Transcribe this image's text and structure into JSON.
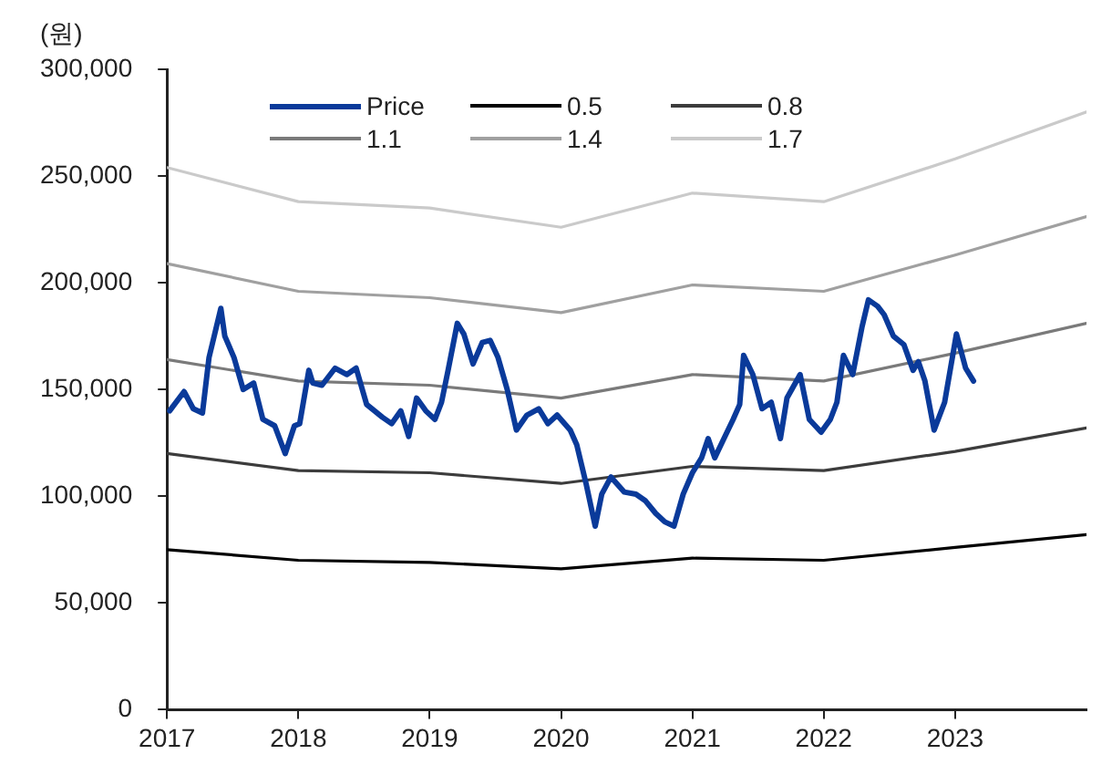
{
  "chart_data": {
    "type": "line",
    "ylabel": "(원)",
    "xlim": [
      2017,
      2024
    ],
    "xticks": [
      2017,
      2018,
      2019,
      2020,
      2021,
      2022,
      2023
    ],
    "ylim": [
      0,
      300000
    ],
    "yticks": [
      0,
      {
        "value": 50000,
        "label": "50,000"
      },
      {
        "value": 100000,
        "label": "100,000"
      },
      {
        "value": 150000,
        "label": "150,000"
      },
      {
        "value": 200000,
        "label": "200,000"
      },
      {
        "value": 250000,
        "label": "250,000"
      },
      {
        "value": 300000,
        "label": "300,000"
      }
    ],
    "grid": false,
    "legend": "top left",
    "marker": "none",
    "line_style": "solid",
    "series": [
      {
        "name": "Price",
        "color": "#0a3a9a",
        "x": [
          2017.02,
          2017.13,
          2017.2,
          2017.27,
          2017.32,
          2017.41,
          2017.44,
          2017.51,
          2017.58,
          2017.66,
          2017.73,
          2017.82,
          2017.9,
          2017.97,
          2018.01,
          2018.08,
          2018.11,
          2018.18,
          2018.28,
          2018.37,
          2018.44,
          2018.52,
          2018.64,
          2018.71,
          2018.78,
          2018.84,
          2018.9,
          2018.97,
          2019.04,
          2019.09,
          2019.14,
          2019.21,
          2019.26,
          2019.33,
          2019.4,
          2019.46,
          2019.52,
          2019.59,
          2019.66,
          2019.74,
          2019.83,
          2019.9,
          2019.97,
          2020.07,
          2020.12,
          2020.19,
          2020.26,
          2020.31,
          2020.38,
          2020.48,
          2020.57,
          2020.64,
          2020.72,
          2020.79,
          2020.86,
          2020.93,
          2021,
          2021.07,
          2021.12,
          2021.17,
          2021.24,
          2021.31,
          2021.36,
          2021.39,
          2021.46,
          2021.53,
          2021.6,
          2021.67,
          2021.72,
          2021.82,
          2021.89,
          2021.98,
          2022.05,
          2022.1,
          2022.15,
          2022.22,
          2022.29,
          2022.34,
          2022.41,
          2022.46,
          2022.53,
          2022.61,
          2022.68,
          2022.72,
          2022.77,
          2022.84,
          2022.92,
          2023.01,
          2023.08,
          2023.14
        ],
        "values": [
          140000,
          149000,
          141000,
          139000,
          165000,
          188000,
          175000,
          165000,
          150000,
          153000,
          136000,
          133000,
          120000,
          133000,
          134000,
          159000,
          153000,
          152000,
          160000,
          157000,
          160000,
          143000,
          137000,
          134000,
          140000,
          128000,
          146000,
          140000,
          136000,
          144000,
          159000,
          181000,
          176000,
          162000,
          172000,
          173000,
          165000,
          150000,
          131000,
          138000,
          141000,
          134000,
          138000,
          131000,
          124000,
          106000,
          86000,
          101000,
          109000,
          102000,
          101000,
          98000,
          92000,
          88000,
          86000,
          101000,
          111000,
          118000,
          127000,
          118000,
          127000,
          136000,
          143000,
          166000,
          157000,
          141000,
          144000,
          127000,
          146000,
          157000,
          136000,
          130000,
          136000,
          144000,
          166000,
          157000,
          179000,
          192000,
          189000,
          185000,
          175000,
          171000,
          159000,
          163000,
          154000,
          131000,
          144000,
          176000,
          160000,
          154000
        ]
      },
      {
        "name": "0.5",
        "color": "#000000",
        "x": [
          2017,
          2018,
          2019,
          2020,
          2021,
          2022,
          2023,
          2024
        ],
        "values": [
          75000,
          70000,
          69000,
          66000,
          71000,
          70000,
          76000,
          82000
        ]
      },
      {
        "name": "0.8",
        "color": "#3c3c3c",
        "x": [
          2017,
          2018,
          2019,
          2020,
          2021,
          2022,
          2023,
          2024
        ],
        "values": [
          120000,
          112000,
          111000,
          106000,
          114000,
          112000,
          121000,
          132000
        ]
      },
      {
        "name": "1.1",
        "color": "#7a7a7a",
        "x": [
          2017,
          2018,
          2019,
          2020,
          2021,
          2022,
          2023,
          2024
        ],
        "values": [
          164000,
          154000,
          152000,
          146000,
          157000,
          154000,
          167000,
          181000
        ]
      },
      {
        "name": "1.4",
        "color": "#a0a0a0",
        "x": [
          2017,
          2018,
          2019,
          2020,
          2021,
          2022,
          2023,
          2024
        ],
        "values": [
          209000,
          196000,
          193000,
          186000,
          199000,
          196000,
          213000,
          231000
        ]
      },
      {
        "name": "1.7",
        "color": "#cacaca",
        "x": [
          2017,
          2018,
          2019,
          2020,
          2021,
          2022,
          2023,
          2024
        ],
        "values": [
          254000,
          238000,
          235000,
          226000,
          242000,
          238000,
          258000,
          280000
        ]
      }
    ]
  }
}
